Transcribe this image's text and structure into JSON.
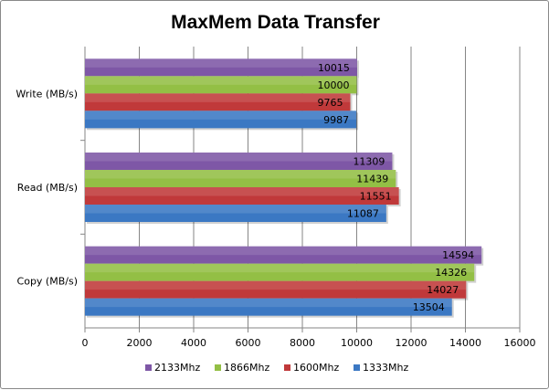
{
  "chart_data": {
    "type": "bar",
    "orientation": "horizontal",
    "title": "MaxMem Data Transfer",
    "categories": [
      "Write (MB/s)",
      "Read (MB/s)",
      "Copy (MB/s)"
    ],
    "series": [
      {
        "name": "2133Mhz",
        "color": "#7E57A6",
        "values": [
          10015,
          11309,
          14594
        ]
      },
      {
        "name": "1866Mhz",
        "color": "#93BF45",
        "values": [
          10000,
          11439,
          14326
        ]
      },
      {
        "name": "1600Mhz",
        "color": "#C0393A",
        "values": [
          9765,
          11551,
          14027
        ]
      },
      {
        "name": "1333Mhz",
        "color": "#3B78C3",
        "values": [
          9987,
          11087,
          13504
        ]
      }
    ],
    "xlim": [
      0,
      16000
    ],
    "xticks": [
      0,
      2000,
      4000,
      6000,
      8000,
      10000,
      12000,
      14000,
      16000
    ],
    "grid": true,
    "legend_position": "bottom",
    "xlabel": "",
    "ylabel": ""
  }
}
